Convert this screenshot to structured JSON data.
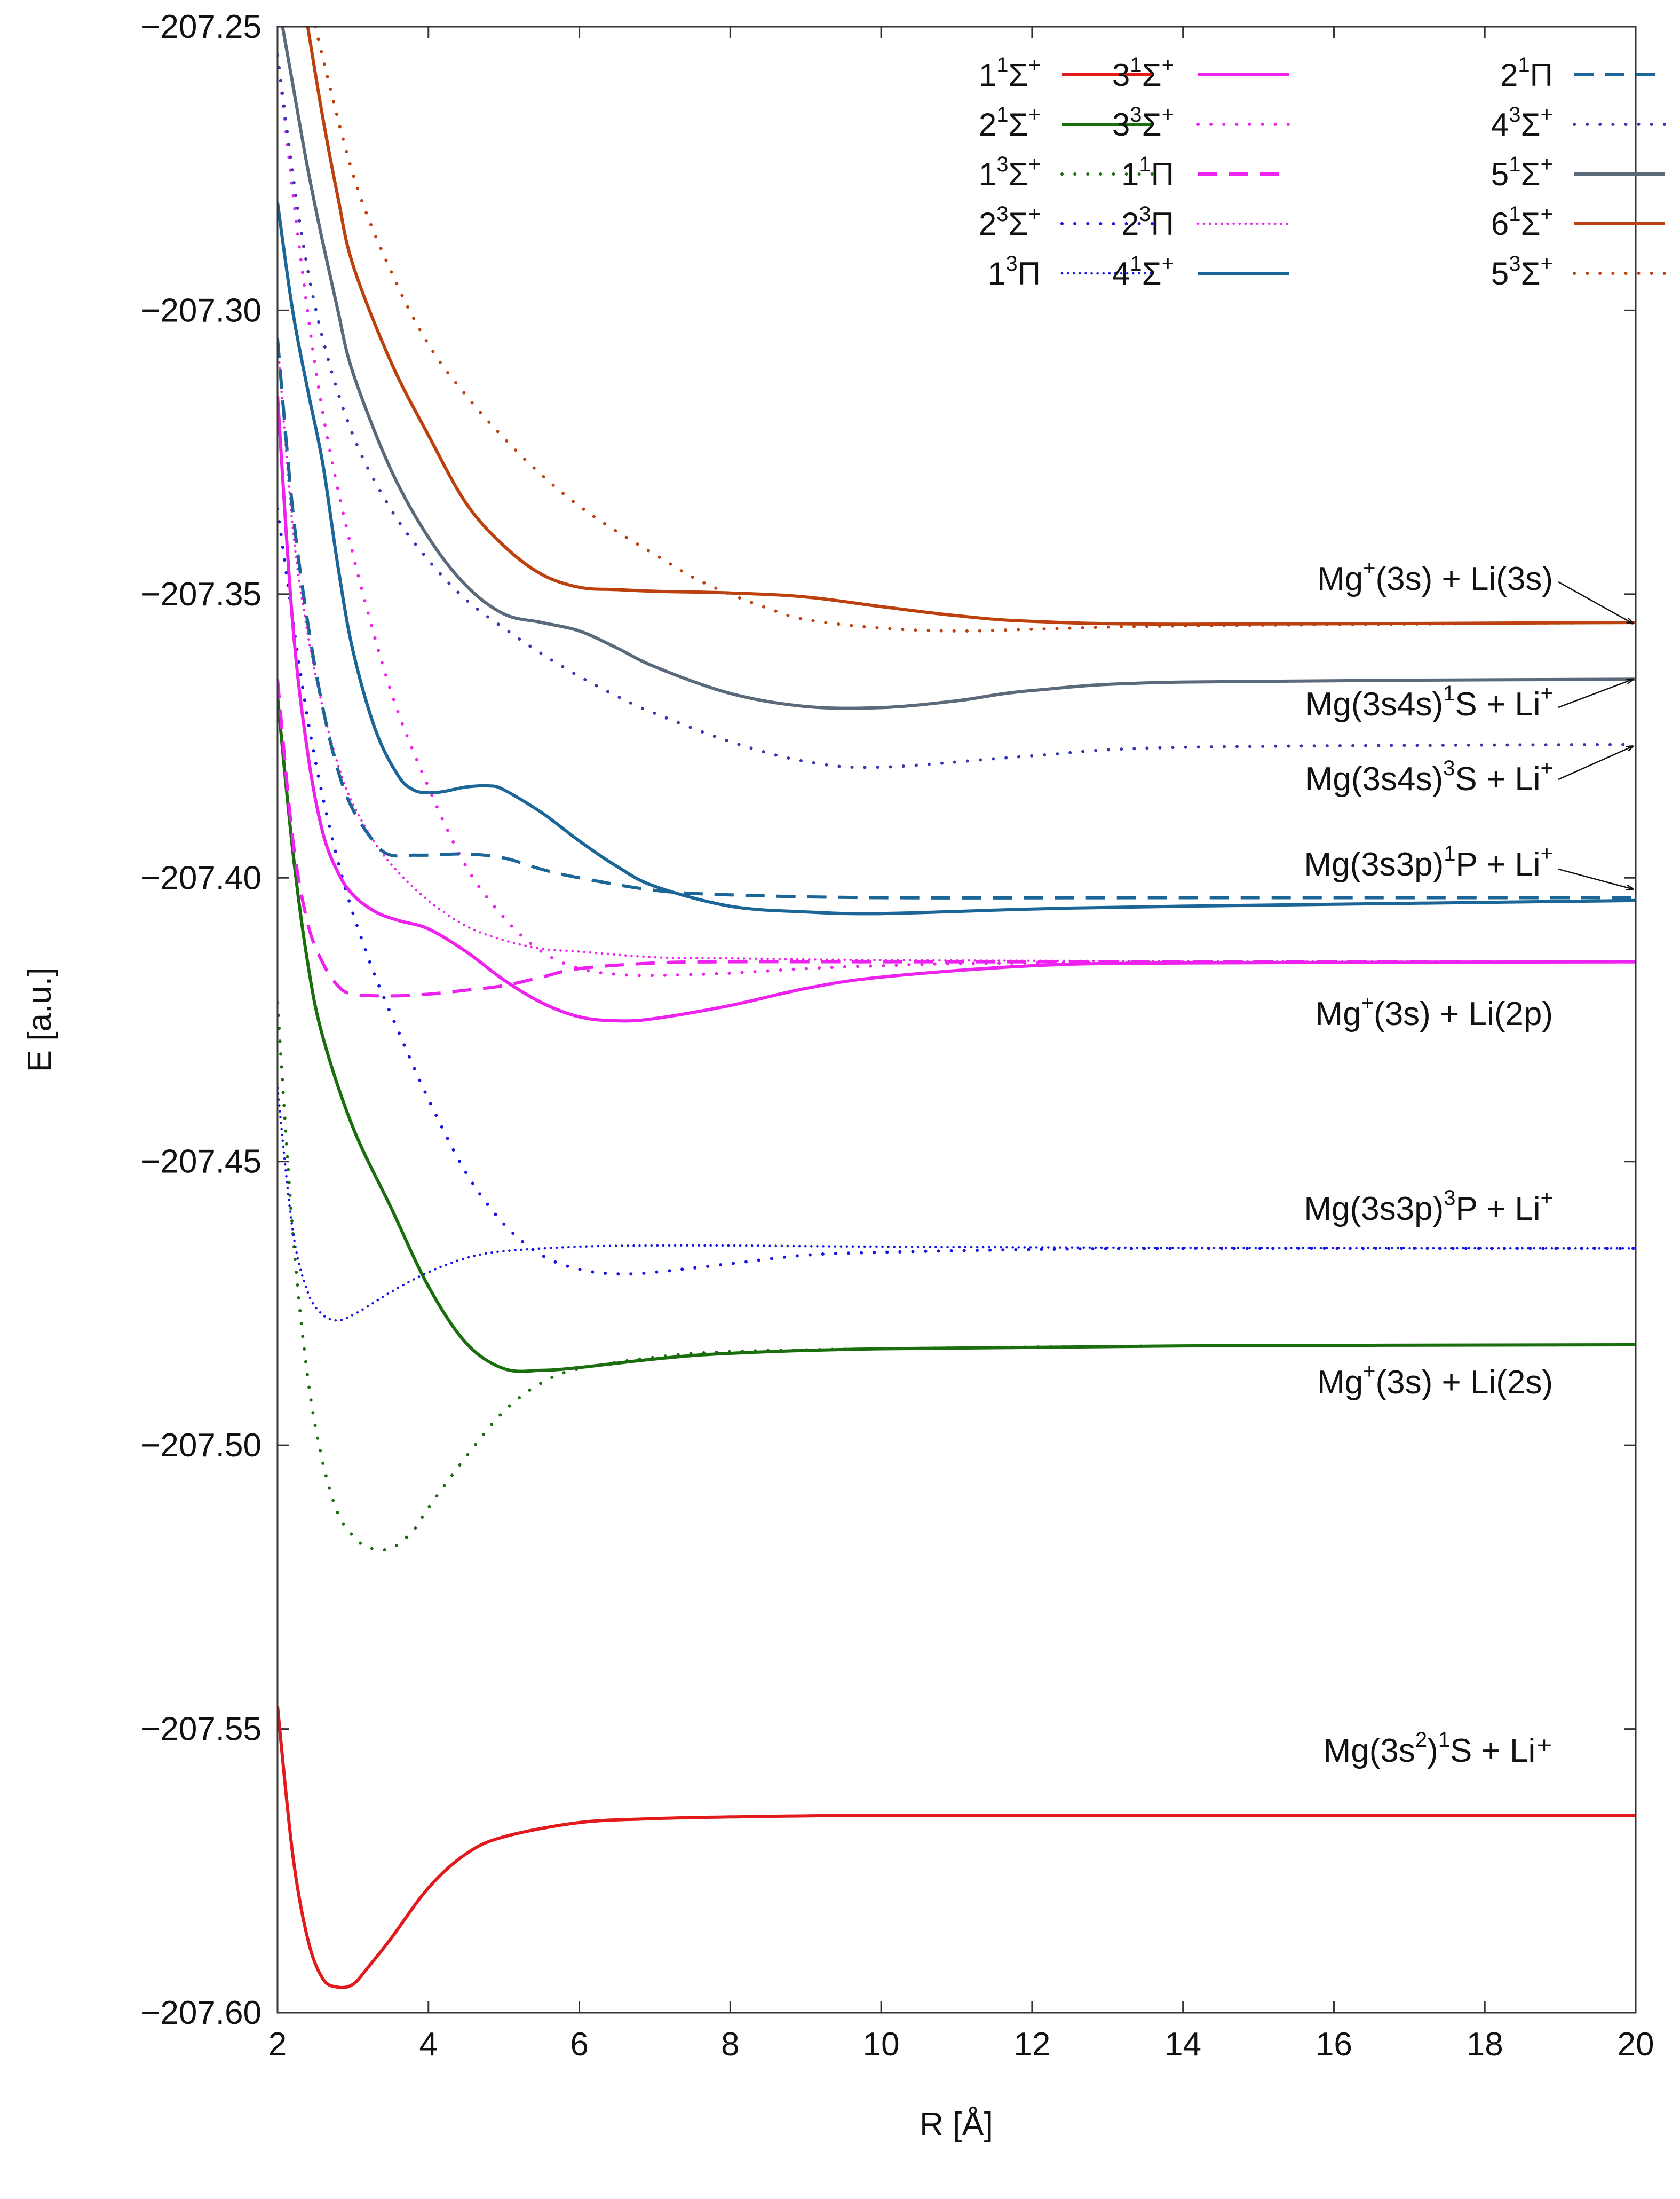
{
  "chart_data": {
    "type": "line",
    "xlabel": "R [Å]",
    "ylabel": "E [a.u.]",
    "xlim": [
      2,
      20
    ],
    "ylim": [
      -207.6,
      -207.25
    ],
    "xticks": [
      2,
      4,
      6,
      8,
      10,
      12,
      14,
      16,
      18,
      20
    ],
    "yticks": [
      -207.6,
      -207.55,
      -207.5,
      -207.45,
      -207.4,
      -207.35,
      -207.3,
      -207.25
    ],
    "ytick_labels": [
      "−207.60",
      "−207.55",
      "−207.50",
      "−207.45",
      "−207.40",
      "−207.35",
      "−207.30",
      "−207.25"
    ],
    "legend_position": "top-right",
    "series": [
      {
        "name": "1¹Σ⁺",
        "base": "1",
        "sup": "1",
        "sym": "Σ",
        "symsup": "+",
        "color": "#e31a1c",
        "style": "solid",
        "x": [
          2.0,
          2.2,
          2.4,
          2.6,
          2.8,
          3.0,
          3.2,
          3.5,
          4.0,
          4.5,
          5.0,
          6.0,
          7.0,
          8.0,
          10.0,
          14.0,
          20.0
        ],
        "y": [
          -207.546,
          -207.572,
          -207.587,
          -207.594,
          -207.5955,
          -207.595,
          -207.592,
          -207.587,
          -207.578,
          -207.572,
          -207.569,
          -207.5665,
          -207.5658,
          -207.5655,
          -207.5652,
          -207.5652,
          -207.5652
        ]
      },
      {
        "name": "2¹Σ⁺",
        "base": "2",
        "sup": "1",
        "sym": "Σ",
        "symsup": "+",
        "color": "#1a6e0e",
        "style": "solid",
        "x": [
          2.0,
          2.2,
          2.4,
          2.6,
          3.0,
          3.5,
          4.0,
          4.5,
          5.0,
          5.5,
          6.0,
          7.0,
          8.0,
          10.0,
          14.0,
          20.0
        ],
        "y": [
          -207.368,
          -207.395,
          -207.415,
          -207.428,
          -207.444,
          -207.458,
          -207.472,
          -207.482,
          -207.4865,
          -207.4868,
          -207.4863,
          -207.4848,
          -207.4838,
          -207.483,
          -207.4825,
          -207.4823
        ]
      },
      {
        "name": "1³Σ⁺",
        "base": "1",
        "sup": "3",
        "sym": "Σ",
        "symsup": "+",
        "color": "#1a6e0e",
        "style": "dots",
        "x": [
          2.0,
          2.2,
          2.4,
          2.6,
          2.8,
          3.0,
          3.2,
          3.5,
          3.8,
          4.0,
          4.5,
          5.0,
          5.5,
          6.0,
          7.0,
          8.0,
          10.0,
          14.0,
          20.0
        ],
        "y": [
          -207.422,
          -207.462,
          -207.488,
          -207.503,
          -207.512,
          -207.516,
          -207.518,
          -207.5182,
          -207.515,
          -207.511,
          -207.502,
          -207.494,
          -207.489,
          -207.4865,
          -207.4845,
          -207.4835,
          -207.483,
          -207.4825,
          -207.4823
        ]
      },
      {
        "name": "2³Σ⁺",
        "base": "2",
        "sup": "3",
        "sym": "Σ",
        "symsup": "+",
        "color": "#1414e6",
        "style": "dots",
        "x": [
          2.0,
          2.4,
          2.8,
          3.2,
          3.6,
          4.0,
          4.5,
          5.0,
          5.5,
          6.0,
          6.5,
          7.0,
          8.0,
          9.0,
          10.0,
          12.0,
          14.0,
          20.0
        ],
        "y": [
          -207.335,
          -207.372,
          -207.397,
          -207.414,
          -207.427,
          -207.439,
          -207.452,
          -207.461,
          -207.4665,
          -207.469,
          -207.4698,
          -207.4695,
          -207.468,
          -207.4665,
          -207.466,
          -207.4655,
          -207.4653,
          -207.4653
        ]
      },
      {
        "name": "1³Π",
        "base": "1",
        "sup": "3",
        "sym": "Π",
        "symsup": "",
        "color": "#1414e6",
        "style": "densedots",
        "x": [
          2.0,
          2.2,
          2.4,
          2.6,
          2.8,
          3.0,
          3.2,
          3.5,
          4.0,
          4.5,
          5.0,
          6.0,
          7.0,
          8.0,
          10.0,
          14.0,
          20.0
        ],
        "y": [
          -207.437,
          -207.462,
          -207.473,
          -207.477,
          -207.478,
          -207.477,
          -207.4755,
          -207.473,
          -207.4695,
          -207.467,
          -207.4658,
          -207.465,
          -207.4648,
          -207.4648,
          -207.465,
          -207.4652,
          -207.4653
        ]
      },
      {
        "name": "3¹Σ⁺",
        "base": "3",
        "sup": "1",
        "sym": "Σ",
        "symsup": "+",
        "color": "#ee22ee",
        "style": "solid",
        "x": [
          2.0,
          2.2,
          2.4,
          2.6,
          2.8,
          3.0,
          3.3,
          3.6,
          4.0,
          4.5,
          5.0,
          5.5,
          6.0,
          6.5,
          7.0,
          8.0,
          9.0,
          10.0,
          12.0,
          14.0,
          20.0
        ],
        "y": [
          -207.315,
          -207.355,
          -207.378,
          -207.392,
          -207.399,
          -207.403,
          -207.406,
          -207.4075,
          -207.409,
          -207.413,
          -207.418,
          -207.422,
          -207.4245,
          -207.4252,
          -207.4248,
          -207.4225,
          -207.4195,
          -207.4175,
          -207.4155,
          -207.415,
          -207.4148
        ]
      },
      {
        "name": "3³Σ⁺",
        "base": "3",
        "sup": "3",
        "sym": "Σ",
        "symsup": "+",
        "color": "#ee22ee",
        "style": "dots",
        "x": [
          2.0,
          2.3,
          2.6,
          3.0,
          3.5,
          4.0,
          4.5,
          5.0,
          5.5,
          6.0,
          6.5,
          7.0,
          8.0,
          9.0,
          10.0,
          12.0,
          20.0
        ],
        "y": [
          -207.255,
          -207.29,
          -207.318,
          -207.343,
          -207.367,
          -207.384,
          -207.398,
          -207.407,
          -207.413,
          -207.416,
          -207.417,
          -207.4172,
          -207.4168,
          -207.416,
          -207.4155,
          -207.415,
          -207.4148
        ]
      },
      {
        "name": "1¹Π",
        "base": "1",
        "sup": "1",
        "sym": "Π",
        "symsup": "",
        "color": "#ee22ee",
        "style": "dashed",
        "x": [
          2.0,
          2.2,
          2.4,
          2.6,
          2.8,
          3.0,
          3.5,
          4.0,
          4.5,
          5.0,
          5.5,
          6.0,
          7.0,
          8.0,
          10.0,
          14.0,
          20.0
        ],
        "y": [
          -207.365,
          -207.393,
          -207.408,
          -207.415,
          -207.419,
          -207.4205,
          -207.4208,
          -207.4205,
          -207.4198,
          -207.419,
          -207.4175,
          -207.416,
          -207.415,
          -207.4148,
          -207.4148,
          -207.4148,
          -207.4148
        ]
      },
      {
        "name": "2³Π",
        "base": "2",
        "sup": "3",
        "sym": "Π",
        "symsup": "",
        "color": "#ee22ee",
        "style": "densedots",
        "x": [
          2.0,
          2.2,
          2.4,
          2.6,
          2.8,
          3.0,
          3.3,
          3.6,
          4.0,
          4.5,
          5.0,
          5.5,
          6.0,
          7.0,
          8.0,
          10.0,
          14.0,
          20.0
        ],
        "y": [
          -207.305,
          -207.338,
          -207.357,
          -207.37,
          -207.38,
          -207.387,
          -207.394,
          -207.399,
          -207.404,
          -207.4085,
          -207.411,
          -207.4125,
          -207.413,
          -207.414,
          -207.4142,
          -207.4145,
          -207.4147,
          -207.4148
        ]
      },
      {
        "name": "4¹Σ⁺",
        "base": "4",
        "sup": "1",
        "sym": "Σ",
        "symsup": "+",
        "color": "#1b6597",
        "style": "solid",
        "x": [
          2.0,
          2.2,
          2.4,
          2.6,
          2.8,
          3.0,
          3.3,
          3.6,
          3.8,
          4.0,
          4.2,
          4.5,
          4.8,
          5.0,
          5.5,
          6.0,
          6.5,
          7.0,
          8.0,
          9.0,
          10.0,
          12.0,
          14.0,
          20.0
        ],
        "y": [
          -207.281,
          -207.3,
          -207.314,
          -207.327,
          -207.345,
          -207.36,
          -207.374,
          -207.382,
          -207.3845,
          -207.385,
          -207.3848,
          -207.384,
          -207.3838,
          -207.3845,
          -207.3885,
          -207.3935,
          -207.398,
          -207.4015,
          -207.405,
          -207.406,
          -207.4063,
          -207.4055,
          -207.405,
          -207.404
        ]
      },
      {
        "name": "2¹Π",
        "base": "2",
        "sup": "1",
        "sym": "Π",
        "symsup": "",
        "color": "#1b6597",
        "style": "dashed",
        "x": [
          2.0,
          2.2,
          2.4,
          2.6,
          2.8,
          3.0,
          3.3,
          3.5,
          3.8,
          4.0,
          4.5,
          5.0,
          5.5,
          6.0,
          7.0,
          8.0,
          10.0,
          14.0,
          20.0
        ],
        "y": [
          -207.305,
          -207.335,
          -207.355,
          -207.37,
          -207.381,
          -207.388,
          -207.394,
          -207.396,
          -207.396,
          -207.396,
          -207.3958,
          -207.3965,
          -207.3985,
          -207.4,
          -207.4022,
          -207.403,
          -207.4035,
          -207.4035,
          -207.4035
        ]
      },
      {
        "name": "4³Σ⁺",
        "base": "4",
        "sup": "3",
        "sym": "Σ",
        "symsup": "+",
        "color": "#3737b0",
        "style": "dots",
        "x": [
          2.0,
          2.3,
          2.6,
          3.0,
          3.5,
          4.0,
          4.5,
          5.0,
          5.5,
          6.0,
          6.5,
          7.0,
          8.0,
          9.0,
          10.0,
          12.0,
          14.0,
          20.0
        ],
        "y": [
          -207.255,
          -207.285,
          -207.305,
          -207.322,
          -207.335,
          -207.344,
          -207.351,
          -207.356,
          -207.3605,
          -207.3645,
          -207.368,
          -207.371,
          -207.376,
          -207.3795,
          -207.3805,
          -207.3785,
          -207.377,
          -207.3765
        ]
      },
      {
        "name": "5¹Σ⁺",
        "base": "5",
        "sup": "1",
        "sym": "Σ",
        "symsup": "+",
        "color": "#5a6a7a",
        "style": "solid",
        "x": [
          2.0,
          2.2,
          2.4,
          2.6,
          2.8,
          3.0,
          3.5,
          4.0,
          4.5,
          5.0,
          5.5,
          6.0,
          6.5,
          7.0,
          8.0,
          9.0,
          10.0,
          11.0,
          12.0,
          14.0,
          20.0
        ],
        "y": [
          -207.245,
          -207.26,
          -207.275,
          -207.288,
          -207.3,
          -207.311,
          -207.328,
          -207.34,
          -207.3485,
          -207.3535,
          -207.355,
          -207.3565,
          -207.3595,
          -207.3628,
          -207.3675,
          -207.3698,
          -207.37,
          -207.3688,
          -207.367,
          -207.3655,
          -207.365
        ]
      },
      {
        "name": "6¹Σ⁺",
        "base": "6",
        "sup": "1",
        "sym": "Σ",
        "symsup": "+",
        "color": "#bd410e",
        "style": "solid",
        "x": [
          2.4,
          2.6,
          2.8,
          3.0,
          3.5,
          4.0,
          4.5,
          5.0,
          5.5,
          6.0,
          6.5,
          7.0,
          8.0,
          9.0,
          10.0,
          11.0,
          12.0,
          14.0,
          20.0
        ],
        "y": [
          -207.25,
          -207.266,
          -207.28,
          -207.292,
          -207.309,
          -207.322,
          -207.334,
          -207.3415,
          -207.3465,
          -207.3488,
          -207.3492,
          -207.3495,
          -207.3498,
          -207.3505,
          -207.3522,
          -207.3538,
          -207.3548,
          -207.3553,
          -207.355
        ]
      },
      {
        "name": "5³Σ⁺",
        "base": "5",
        "sup": "3",
        "sym": "Σ",
        "symsup": "+",
        "color": "#bd410e",
        "style": "dots",
        "x": [
          2.5,
          3.0,
          3.5,
          4.0,
          4.5,
          5.0,
          5.5,
          6.0,
          6.5,
          7.0,
          7.5,
          8.0,
          8.5,
          9.0,
          10.0,
          11.0,
          12.0,
          14.0,
          20.0
        ],
        "y": [
          -207.25,
          -207.276,
          -207.293,
          -207.306,
          -207.315,
          -207.3225,
          -207.329,
          -207.3345,
          -207.339,
          -207.343,
          -207.347,
          -207.35,
          -207.3525,
          -207.3545,
          -207.356,
          -207.3565,
          -207.3562,
          -207.3556,
          -207.355
        ]
      }
    ],
    "annotations": [
      {
        "id": "a-mgp-li3s",
        "pre": "Mg",
        "sup1": "+",
        "mid": "(3s) + Li(3s)",
        "sup2": "",
        "post": "",
        "text": "Mg⁺(3s) + Li(3s)",
        "arrow_to_y": -207.3552
      },
      {
        "id": "a-3s4s-1s",
        "pre": "Mg(3s4s)",
        "sup1": "1",
        "mid": "S + Li",
        "sup2": "+",
        "post": "",
        "text": "Mg(3s4s)¹S + Li⁺",
        "arrow_to_y": -207.365
      },
      {
        "id": "a-3s4s-3s",
        "pre": "Mg(3s4s)",
        "sup1": "3",
        "mid": "S + Li",
        "sup2": "+",
        "post": "",
        "text": "Mg(3s4s)³S + Li⁺",
        "arrow_to_y": -207.3768
      },
      {
        "id": "a-3s3p-1p",
        "pre": "Mg(3s3p)",
        "sup1": "1",
        "mid": "P + Li",
        "sup2": "+",
        "post": "",
        "text": "Mg(3s3p)¹P + Li⁺",
        "arrow_to_y": -207.402
      },
      {
        "id": "a-mgp-li2p",
        "pre": "Mg",
        "sup1": "+",
        "mid": "(3s) + Li(2p)",
        "sup2": "",
        "post": "",
        "text": "Mg⁺(3s) + Li(2p)",
        "arrow_to_y": null
      },
      {
        "id": "a-3s3p-3p",
        "pre": "Mg(3s3p)",
        "sup1": "3",
        "mid": "P + Li",
        "sup2": "+",
        "post": "",
        "text": "Mg(3s3p)³P + Li⁺",
        "arrow_to_y": null
      },
      {
        "id": "a-mgp-li2s",
        "pre": "Mg",
        "sup1": "+",
        "mid": "(3s) + Li(2s)",
        "sup2": "",
        "post": "",
        "text": "Mg⁺(3s) + Li(2s)",
        "arrow_to_y": null
      },
      {
        "id": "a-3s2-1s",
        "pre": "Mg(3s",
        "sup1": "2",
        "mid": ")",
        "sup2": "1",
        "post": "S + Li⁺",
        "text": "Mg(3s²)¹S + Li⁺",
        "arrow_to_y": null
      }
    ]
  }
}
